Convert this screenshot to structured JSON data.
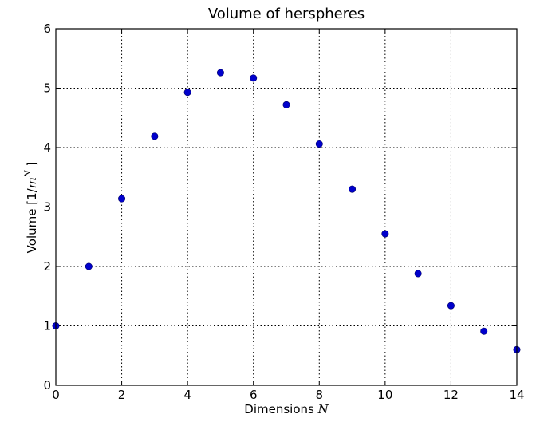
{
  "chart_data": {
    "type": "scatter",
    "title": "Volume of herspheres",
    "xlabel": "Dimensions ",
    "xlabel_math": "N",
    "ylabel": "Volume  [1/",
    "ylabel_math": "m",
    "ylabel_sup": "N",
    "ylabel_end": " ]",
    "xlim": [
      0,
      14
    ],
    "ylim": [
      0,
      6
    ],
    "xticks": [
      0,
      2,
      4,
      6,
      8,
      10,
      12,
      14
    ],
    "yticks": [
      0,
      1,
      2,
      3,
      4,
      5,
      6
    ],
    "xtick_labels": [
      "0",
      "2",
      "4",
      "6",
      "8",
      "10",
      "12",
      "14"
    ],
    "ytick_labels": [
      "0",
      "1",
      "2",
      "3",
      "4",
      "5",
      "6"
    ],
    "grid": true,
    "marker_color": "#0000cc",
    "x": [
      0,
      1,
      2,
      3,
      4,
      5,
      6,
      7,
      8,
      9,
      10,
      11,
      12,
      13,
      14
    ],
    "y": [
      1.0,
      2.0,
      3.14,
      4.19,
      4.93,
      5.26,
      5.17,
      4.72,
      4.06,
      3.3,
      2.55,
      1.88,
      1.34,
      0.91,
      0.6
    ]
  }
}
